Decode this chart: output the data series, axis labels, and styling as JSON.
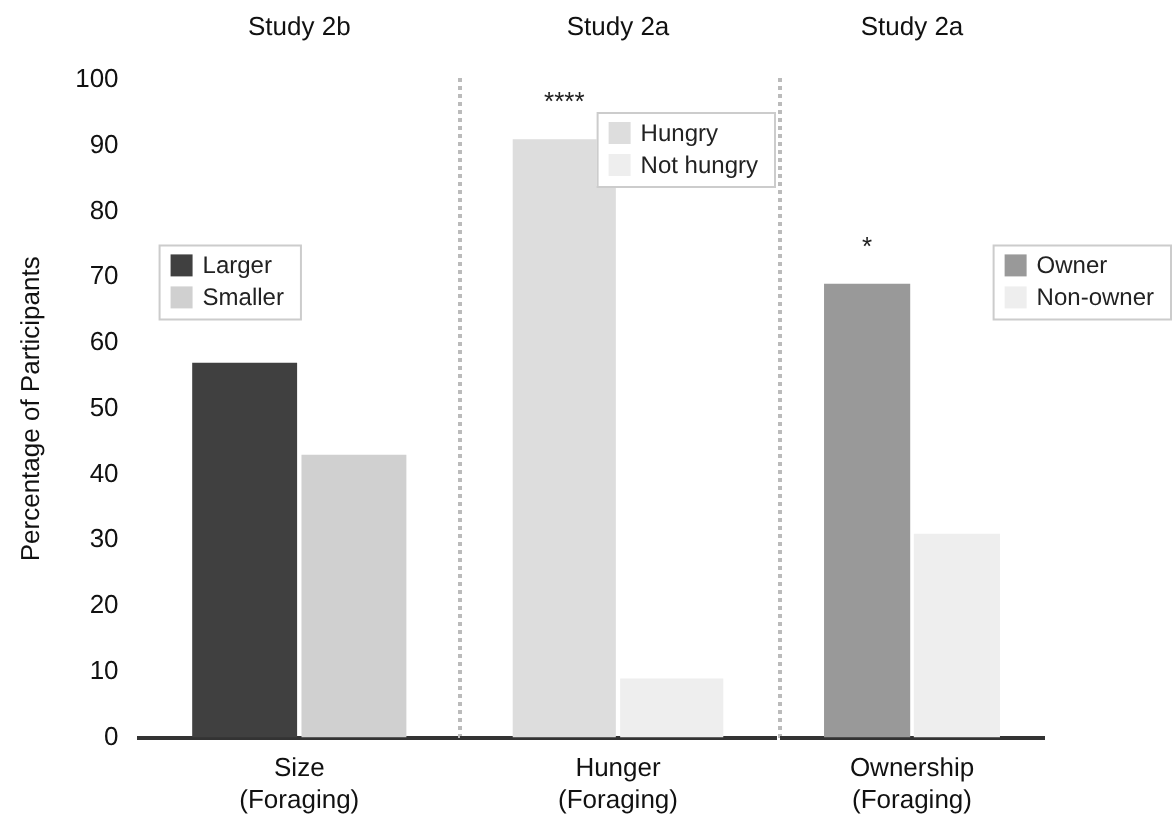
{
  "chart_data": [
    {
      "type": "bar",
      "title": "Study 2b",
      "ylabel": "Percentage of Participants",
      "categories": [
        "Size\n(Foraging)"
      ],
      "series": [
        {
          "name": "Larger",
          "color": "#404040",
          "values": [
            57
          ]
        },
        {
          "name": "Smaller",
          "color": "#d0d0d0",
          "values": [
            43
          ]
        }
      ],
      "ylim": [
        0,
        100
      ],
      "yticks": [
        0,
        10,
        20,
        30,
        40,
        50,
        60,
        70,
        80,
        90,
        100
      ],
      "grid": false,
      "legend": "left"
    },
    {
      "type": "bar",
      "title": "Study 2a",
      "categories": [
        "Hunger\n(Foraging)"
      ],
      "series": [
        {
          "name": "Hungry",
          "color": "#dddddd",
          "values": [
            91
          ]
        },
        {
          "name": "Not hungry",
          "color": "#eeeeee",
          "values": [
            9
          ]
        }
      ],
      "ylim": [
        0,
        100
      ],
      "tick_labels": "x",
      "grid": false,
      "legend": "top right",
      "annotations": [
        "****"
      ]
    },
    {
      "type": "bar",
      "title": "Study 2a",
      "categories": [
        "Ownership\n(Foraging)"
      ],
      "series": [
        {
          "name": "Owner",
          "color": "#999999",
          "values": [
            69
          ]
        },
        {
          "name": "Non-owner",
          "color": "#eeeeee",
          "values": [
            31
          ]
        }
      ],
      "ylim": [
        0,
        100
      ],
      "tick_labels": "x",
      "grid": false,
      "legend": "right",
      "annotations": [
        "*"
      ]
    }
  ]
}
